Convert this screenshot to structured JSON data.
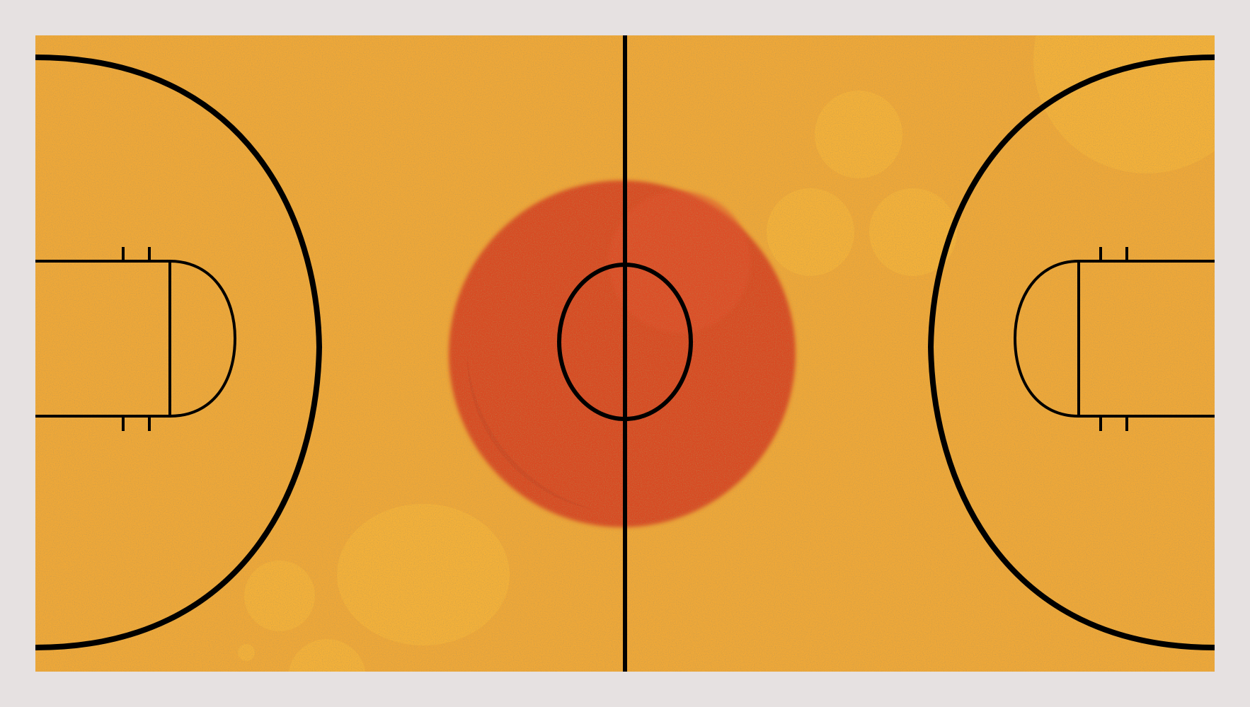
{
  "scene": {
    "subject": "",
    "colors": {
      "frame": "#e6e1e1",
      "court": "#efa838",
      "court_shadow": "#e79c33",
      "highlight": "#f6b43a",
      "center_spot": "#d84a24",
      "center_spot_shade": "#c94322",
      "center_spot_glow": "#e2502a",
      "lines": "#000000",
      "speckle": "#a37022"
    }
  }
}
